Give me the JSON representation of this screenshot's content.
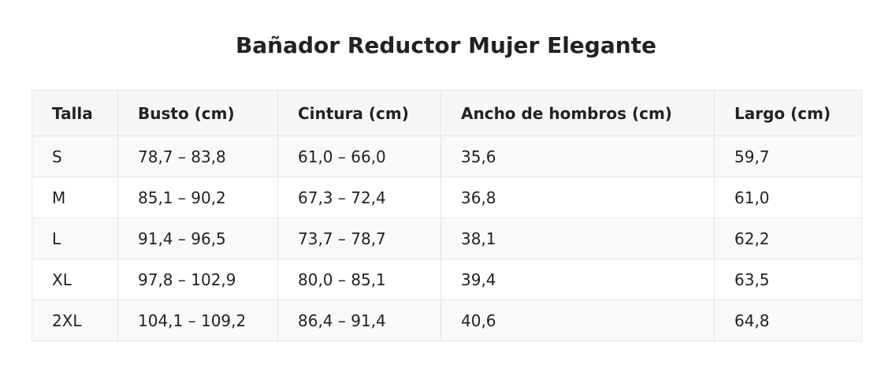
{
  "title": "Bañador Reductor Mujer Elegante",
  "table": {
    "headers": [
      "Talla",
      "Busto (cm)",
      "Cintura (cm)",
      "Ancho de hombros (cm)",
      "Largo (cm)"
    ],
    "rows": [
      [
        "S",
        "78,7 – 83,8",
        "61,0 – 66,0",
        "35,6",
        "59,7"
      ],
      [
        "M",
        "85,1 – 90,2",
        "67,3 – 72,4",
        "36,8",
        "61,0"
      ],
      [
        "L",
        "91,4 – 96,5",
        "73,7 – 78,7",
        "38,1",
        "62,2"
      ],
      [
        "XL",
        "97,8 – 102,9",
        "80,0 – 85,1",
        "39,4",
        "63,5"
      ],
      [
        "2XL",
        "104,1 – 109,2",
        "86,4 – 91,4",
        "40,6",
        "64,8"
      ]
    ]
  }
}
